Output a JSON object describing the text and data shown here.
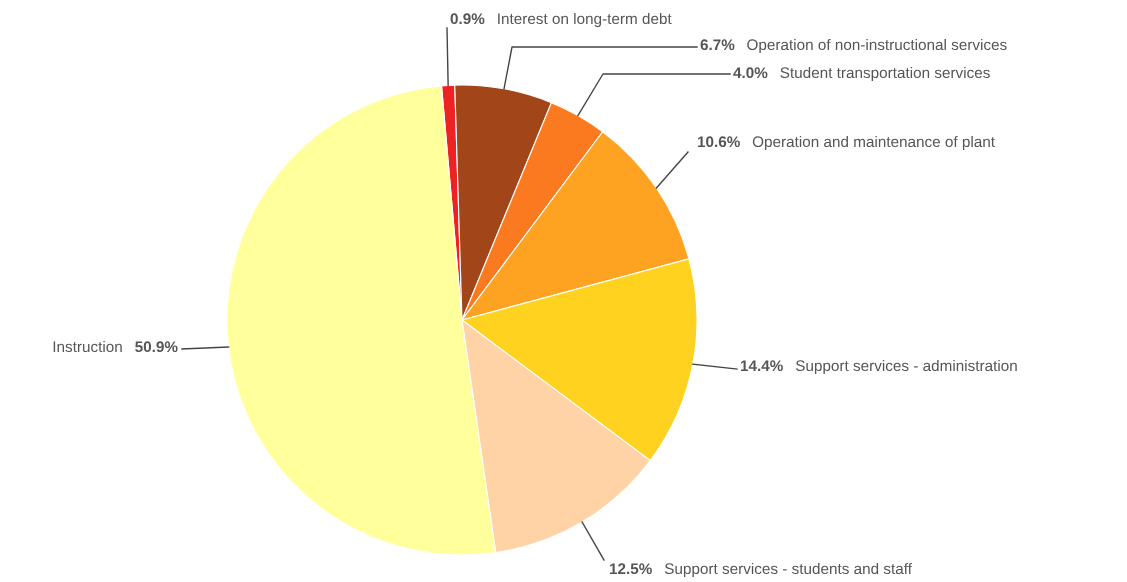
{
  "chart_data": {
    "type": "pie",
    "categories": [
      "Interest on long-term debt",
      "Operation of non-instructional services",
      "Student transportation services",
      "Operation and maintenance of plant",
      "Support services - administration",
      "Support services - students and staff",
      "Instruction"
    ],
    "values": [
      0.9,
      6.7,
      4.0,
      10.6,
      14.4,
      12.5,
      50.9
    ],
    "value_labels": [
      "0.9%",
      "6.7%",
      "4.0%",
      "10.6%",
      "14.4%",
      "12.5%",
      "50.9%"
    ],
    "colors": [
      "#ee2222",
      "#a2461a",
      "#fb7a1f",
      "#fda321",
      "#ffd21f",
      "#ffd3a6",
      "#ffff9c"
    ]
  }
}
